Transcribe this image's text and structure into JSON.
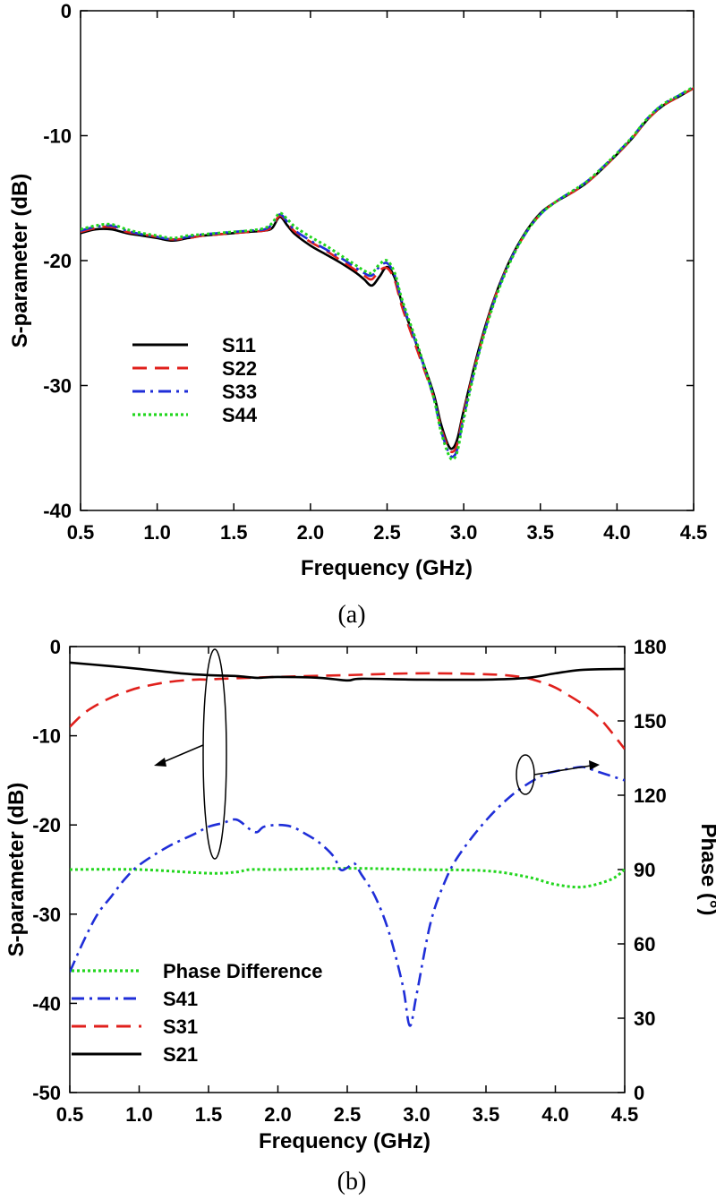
{
  "chart_data": [
    {
      "type": "line",
      "caption": "(a)",
      "xlabel": "Frequency (GHz)",
      "ylabel": "S-parameter (dB)",
      "xlim": [
        0.5,
        4.5
      ],
      "ylim": [
        -40,
        0
      ],
      "xticks": [
        "0.5",
        "1.0",
        "1.5",
        "2.0",
        "2.5",
        "3.0",
        "3.5",
        "4.0",
        "4.5"
      ],
      "yticks": [
        "0",
        "-10",
        "-20",
        "-30",
        "-40"
      ],
      "legend_position": "bottom-left",
      "x": [
        0.5,
        0.6,
        0.7,
        0.8,
        0.9,
        1.0,
        1.1,
        1.2,
        1.3,
        1.4,
        1.5,
        1.6,
        1.7,
        1.75,
        1.8,
        1.85,
        1.9,
        2.0,
        2.1,
        2.2,
        2.3,
        2.35,
        2.4,
        2.45,
        2.5,
        2.55,
        2.6,
        2.7,
        2.8,
        2.85,
        2.9,
        2.93,
        2.96,
        3.0,
        3.1,
        3.2,
        3.3,
        3.4,
        3.5,
        3.6,
        3.7,
        3.8,
        3.9,
        4.0,
        4.1,
        4.2,
        4.3,
        4.4,
        4.5
      ],
      "series": [
        {
          "name": "S11",
          "color": "#000000",
          "dash": "solid",
          "values": [
            -17.8,
            -17.5,
            -17.5,
            -17.8,
            -18.0,
            -18.2,
            -18.4,
            -18.2,
            -18.0,
            -17.9,
            -17.8,
            -17.7,
            -17.6,
            -17.4,
            -16.5,
            -17.2,
            -17.9,
            -18.8,
            -19.5,
            -20.2,
            -21.0,
            -21.5,
            -22.0,
            -21.3,
            -20.5,
            -21.4,
            -23.5,
            -27.0,
            -30.5,
            -33.0,
            -34.8,
            -35.0,
            -34.2,
            -32.0,
            -27.0,
            -23.0,
            -20.0,
            -17.8,
            -16.2,
            -15.3,
            -14.6,
            -13.8,
            -12.7,
            -11.5,
            -10.2,
            -8.7,
            -7.6,
            -6.9,
            -6.2
          ]
        },
        {
          "name": "S22",
          "color": "#e0201c",
          "dash": "dashed",
          "values": [
            -17.7,
            -17.4,
            -17.3,
            -17.7,
            -17.9,
            -18.1,
            -18.3,
            -18.2,
            -18.0,
            -17.9,
            -17.8,
            -17.7,
            -17.6,
            -17.3,
            -16.4,
            -17.0,
            -17.7,
            -18.5,
            -19.2,
            -20.0,
            -20.8,
            -21.2,
            -21.5,
            -20.8,
            -20.6,
            -21.6,
            -23.8,
            -27.3,
            -30.8,
            -33.3,
            -35.0,
            -35.3,
            -34.6,
            -32.2,
            -27.2,
            -23.1,
            -20.1,
            -17.9,
            -16.3,
            -15.3,
            -14.6,
            -13.8,
            -12.7,
            -11.5,
            -10.2,
            -8.7,
            -7.6,
            -6.9,
            -6.2
          ]
        },
        {
          "name": "S33",
          "color": "#1f2ed8",
          "dash": "dashdot",
          "values": [
            -17.6,
            -17.3,
            -17.2,
            -17.6,
            -17.9,
            -18.1,
            -18.3,
            -18.1,
            -17.9,
            -17.8,
            -17.7,
            -17.6,
            -17.5,
            -17.1,
            -16.3,
            -16.9,
            -17.6,
            -18.4,
            -19.1,
            -19.8,
            -20.6,
            -21.0,
            -21.2,
            -20.5,
            -20.2,
            -21.2,
            -23.4,
            -27.0,
            -30.8,
            -33.5,
            -35.3,
            -35.7,
            -35.0,
            -32.5,
            -27.3,
            -23.2,
            -20.1,
            -17.9,
            -16.3,
            -15.3,
            -14.5,
            -13.7,
            -12.6,
            -11.4,
            -10.1,
            -8.6,
            -7.5,
            -6.8,
            -6.1
          ]
        },
        {
          "name": "S44",
          "color": "#22d61e",
          "dash": "dotted",
          "values": [
            -17.5,
            -17.2,
            -17.1,
            -17.5,
            -17.8,
            -18.0,
            -18.2,
            -18.0,
            -17.9,
            -17.8,
            -17.7,
            -17.6,
            -17.4,
            -17.0,
            -16.2,
            -16.7,
            -17.3,
            -18.1,
            -18.8,
            -19.6,
            -20.4,
            -20.8,
            -21.0,
            -20.3,
            -20.0,
            -21.0,
            -23.2,
            -26.8,
            -30.8,
            -33.6,
            -35.5,
            -35.9,
            -35.2,
            -32.7,
            -27.4,
            -23.3,
            -20.2,
            -17.9,
            -16.3,
            -15.3,
            -14.5,
            -13.7,
            -12.6,
            -11.4,
            -10.1,
            -8.6,
            -7.5,
            -6.8,
            -6.1
          ]
        }
      ]
    },
    {
      "type": "line",
      "caption": "(b)",
      "xlabel": "Frequency (GHz)",
      "ylabel": "S-parameter (dB)",
      "y2label": "Phase (°)",
      "xlim": [
        0.5,
        4.5
      ],
      "ylim": [
        -50,
        0
      ],
      "y2lim": [
        0,
        180
      ],
      "xticks": [
        "0.5",
        "1.0",
        "1.5",
        "2.0",
        "2.5",
        "3.0",
        "3.5",
        "4.0",
        "4.5"
      ],
      "yticks": [
        "0",
        "-10",
        "-20",
        "-30",
        "-40",
        "-50"
      ],
      "y2ticks": [
        "180",
        "150",
        "120",
        "90",
        "60",
        "30",
        "0"
      ],
      "legend_position": "bottom-left",
      "series": [
        {
          "name": "Phase Difference",
          "axis": "right",
          "color": "#22d61e",
          "dash": "dotted",
          "x": [
            0.5,
            1.0,
            1.5,
            1.7,
            1.8,
            2.0,
            2.5,
            3.0,
            3.5,
            3.8,
            4.0,
            4.2,
            4.4,
            4.5
          ],
          "values": [
            90,
            90,
            88.5,
            89,
            90,
            90,
            90.5,
            90,
            89.5,
            87,
            84,
            83,
            86,
            90
          ]
        },
        {
          "name": "S41",
          "axis": "left",
          "color": "#1f2ed8",
          "dash": "dashdot",
          "x": [
            0.5,
            0.6,
            0.7,
            0.8,
            0.9,
            1.0,
            1.2,
            1.4,
            1.5,
            1.6,
            1.7,
            1.8,
            1.85,
            1.9,
            2.0,
            2.1,
            2.2,
            2.3,
            2.4,
            2.45,
            2.5,
            2.55,
            2.6,
            2.7,
            2.8,
            2.9,
            2.95,
            3.0,
            3.1,
            3.2,
            3.3,
            3.5,
            3.7,
            3.9,
            4.0,
            4.1,
            4.2,
            4.3,
            4.4,
            4.5
          ],
          "values": [
            -36.5,
            -33.0,
            -30.0,
            -28.0,
            -26.0,
            -24.5,
            -22.5,
            -21.0,
            -20.2,
            -19.8,
            -19.4,
            -20.5,
            -20.8,
            -20.2,
            -20.0,
            -20.2,
            -21.0,
            -22.0,
            -23.5,
            -25.0,
            -24.8,
            -24.3,
            -25.5,
            -28.0,
            -32.0,
            -38.0,
            -42.5,
            -39.0,
            -31.0,
            -26.5,
            -23.5,
            -19.5,
            -16.5,
            -14.5,
            -14.0,
            -13.7,
            -13.5,
            -14.0,
            -14.5,
            -15.0
          ]
        },
        {
          "name": "S31",
          "axis": "left",
          "color": "#e0201c",
          "dash": "dashed",
          "x": [
            0.5,
            0.6,
            0.7,
            0.8,
            0.9,
            1.0,
            1.2,
            1.4,
            1.5,
            1.6,
            2.0,
            2.5,
            3.0,
            3.5,
            3.75,
            3.9,
            4.0,
            4.1,
            4.2,
            4.3,
            4.4,
            4.5
          ],
          "values": [
            -9.0,
            -7.5,
            -6.5,
            -5.7,
            -5.1,
            -4.6,
            -4.0,
            -3.7,
            -3.7,
            -3.6,
            -3.4,
            -3.2,
            -3.0,
            -3.1,
            -3.4,
            -4.0,
            -4.6,
            -5.5,
            -6.5,
            -7.7,
            -9.5,
            -11.5
          ]
        },
        {
          "name": "S21",
          "axis": "left",
          "color": "#000000",
          "dash": "solid",
          "x": [
            0.5,
            0.8,
            1.0,
            1.3,
            1.5,
            1.7,
            1.85,
            2.0,
            2.3,
            2.5,
            2.6,
            3.0,
            3.5,
            3.8,
            4.0,
            4.2,
            4.5
          ],
          "values": [
            -1.8,
            -2.2,
            -2.5,
            -3.0,
            -3.2,
            -3.3,
            -3.5,
            -3.4,
            -3.5,
            -3.8,
            -3.6,
            -3.7,
            -3.7,
            -3.5,
            -3.0,
            -2.6,
            -2.5
          ]
        }
      ]
    }
  ]
}
